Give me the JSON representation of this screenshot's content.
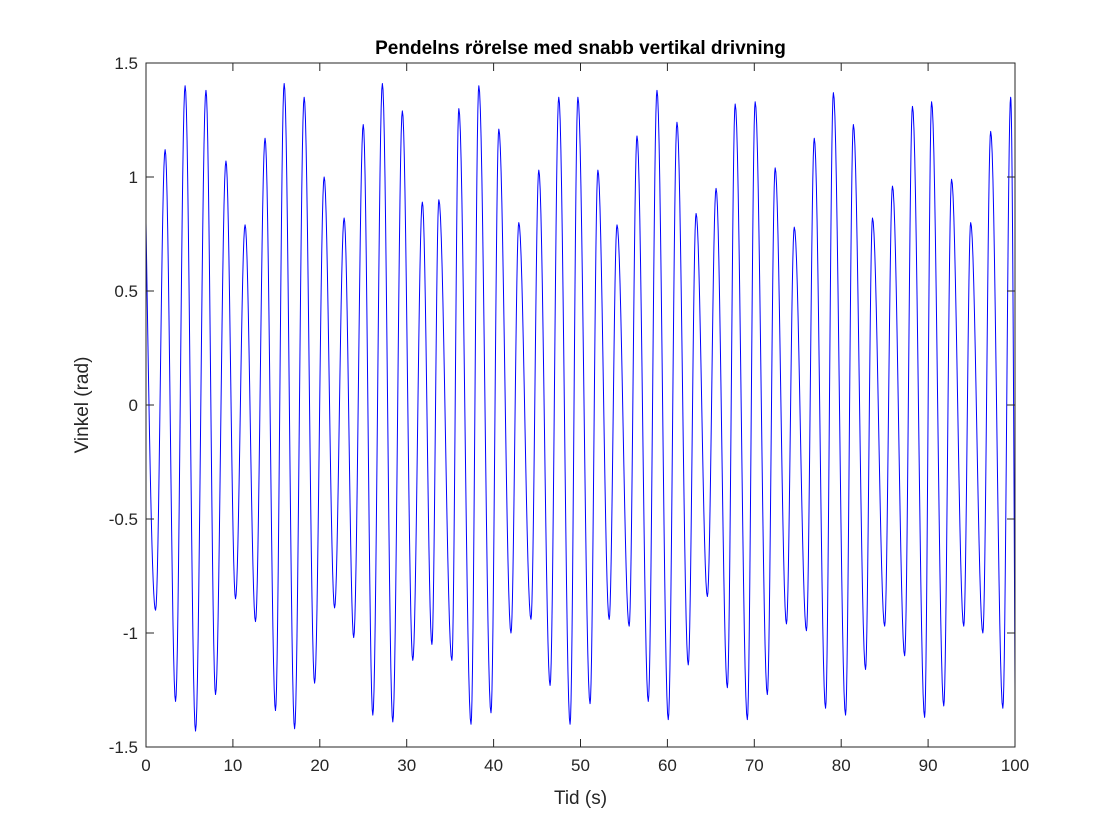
{
  "chart_data": {
    "type": "line",
    "title": "Pendelns rörelse med snabb vertikal drivning",
    "xlabel": "Tid (s)",
    "ylabel": "Vinkel (rad)",
    "xlim": [
      0,
      100
    ],
    "ylim": [
      -1.5,
      1.5
    ],
    "x_ticks": [
      0,
      10,
      20,
      30,
      40,
      50,
      60,
      70,
      80,
      90,
      100
    ],
    "x_tick_labels": [
      "0",
      "10",
      "20",
      "30",
      "40",
      "50",
      "60",
      "70",
      "80",
      "90",
      "100"
    ],
    "y_ticks": [
      -1.5,
      -1,
      -0.5,
      0,
      0.5,
      1,
      1.5
    ],
    "y_tick_labels": [
      "-1.5",
      "-1",
      "-0.5",
      "0",
      "0.5",
      "1",
      "1.5"
    ],
    "grid": false,
    "series_color": "#0000ff",
    "series": [
      {
        "start": [
          0,
          0.8
        ],
        "end": [
          100,
          -1.25
        ],
        "peaks": [
          [
            2.2,
            1.12
          ],
          [
            4.5,
            1.4
          ],
          [
            6.9,
            1.38
          ],
          [
            9.2,
            1.07
          ],
          [
            11.4,
            0.79
          ],
          [
            13.7,
            1.17
          ],
          [
            15.9,
            1.41
          ],
          [
            18.2,
            1.35
          ],
          [
            20.5,
            1.0
          ],
          [
            22.8,
            0.82
          ],
          [
            25.0,
            1.23
          ],
          [
            27.2,
            1.41
          ],
          [
            29.5,
            1.29
          ],
          [
            31.8,
            0.89
          ],
          [
            33.7,
            0.9
          ],
          [
            36.0,
            1.3
          ],
          [
            38.3,
            1.4
          ],
          [
            40.6,
            1.21
          ],
          [
            42.9,
            0.8
          ],
          [
            45.2,
            1.03
          ],
          [
            47.5,
            1.35
          ],
          [
            49.7,
            1.35
          ],
          [
            52.0,
            1.03
          ],
          [
            54.2,
            0.79
          ],
          [
            56.5,
            1.18
          ],
          [
            58.8,
            1.38
          ],
          [
            61.1,
            1.24
          ],
          [
            63.3,
            0.84
          ],
          [
            65.6,
            0.95
          ],
          [
            67.8,
            1.32
          ],
          [
            70.1,
            1.33
          ],
          [
            72.4,
            1.04
          ],
          [
            74.6,
            0.78
          ],
          [
            76.9,
            1.17
          ],
          [
            79.1,
            1.37
          ],
          [
            81.4,
            1.23
          ],
          [
            83.6,
            0.82
          ],
          [
            85.9,
            0.96
          ],
          [
            88.2,
            1.31
          ],
          [
            90.4,
            1.33
          ],
          [
            92.7,
            0.99
          ],
          [
            94.9,
            0.8
          ],
          [
            97.2,
            1.2
          ],
          [
            99.5,
            1.35
          ]
        ],
        "troughs": [
          [
            1.1,
            -0.9
          ],
          [
            3.4,
            -1.3
          ],
          [
            5.7,
            -1.43
          ],
          [
            8.0,
            -1.27
          ],
          [
            10.3,
            -0.85
          ],
          [
            12.6,
            -0.95
          ],
          [
            14.9,
            -1.34
          ],
          [
            17.1,
            -1.42
          ],
          [
            19.4,
            -1.22
          ],
          [
            21.7,
            -0.89
          ],
          [
            23.9,
            -1.02
          ],
          [
            26.1,
            -1.36
          ],
          [
            28.4,
            -1.39
          ],
          [
            30.7,
            -1.12
          ],
          [
            32.9,
            -1.05
          ],
          [
            35.2,
            -1.12
          ],
          [
            37.4,
            -1.4
          ],
          [
            39.7,
            -1.35
          ],
          [
            42.0,
            -1.0
          ],
          [
            44.3,
            -0.94
          ],
          [
            46.5,
            -1.23
          ],
          [
            48.8,
            -1.4
          ],
          [
            51.1,
            -1.31
          ],
          [
            53.3,
            -0.94
          ],
          [
            55.6,
            -0.97
          ],
          [
            57.8,
            -1.3
          ],
          [
            60.1,
            -1.38
          ],
          [
            62.4,
            -1.14
          ],
          [
            64.6,
            -0.84
          ],
          [
            66.9,
            -1.24
          ],
          [
            69.2,
            -1.38
          ],
          [
            71.5,
            -1.27
          ],
          [
            73.7,
            -0.96
          ],
          [
            76.0,
            -0.99
          ],
          [
            78.2,
            -1.33
          ],
          [
            80.5,
            -1.36
          ],
          [
            82.8,
            -1.16
          ],
          [
            85.0,
            -0.97
          ],
          [
            87.3,
            -1.1
          ],
          [
            89.6,
            -1.37
          ],
          [
            91.8,
            -1.32
          ],
          [
            94.1,
            -0.97
          ],
          [
            96.3,
            -1.0
          ],
          [
            98.6,
            -1.33
          ]
        ]
      }
    ]
  }
}
